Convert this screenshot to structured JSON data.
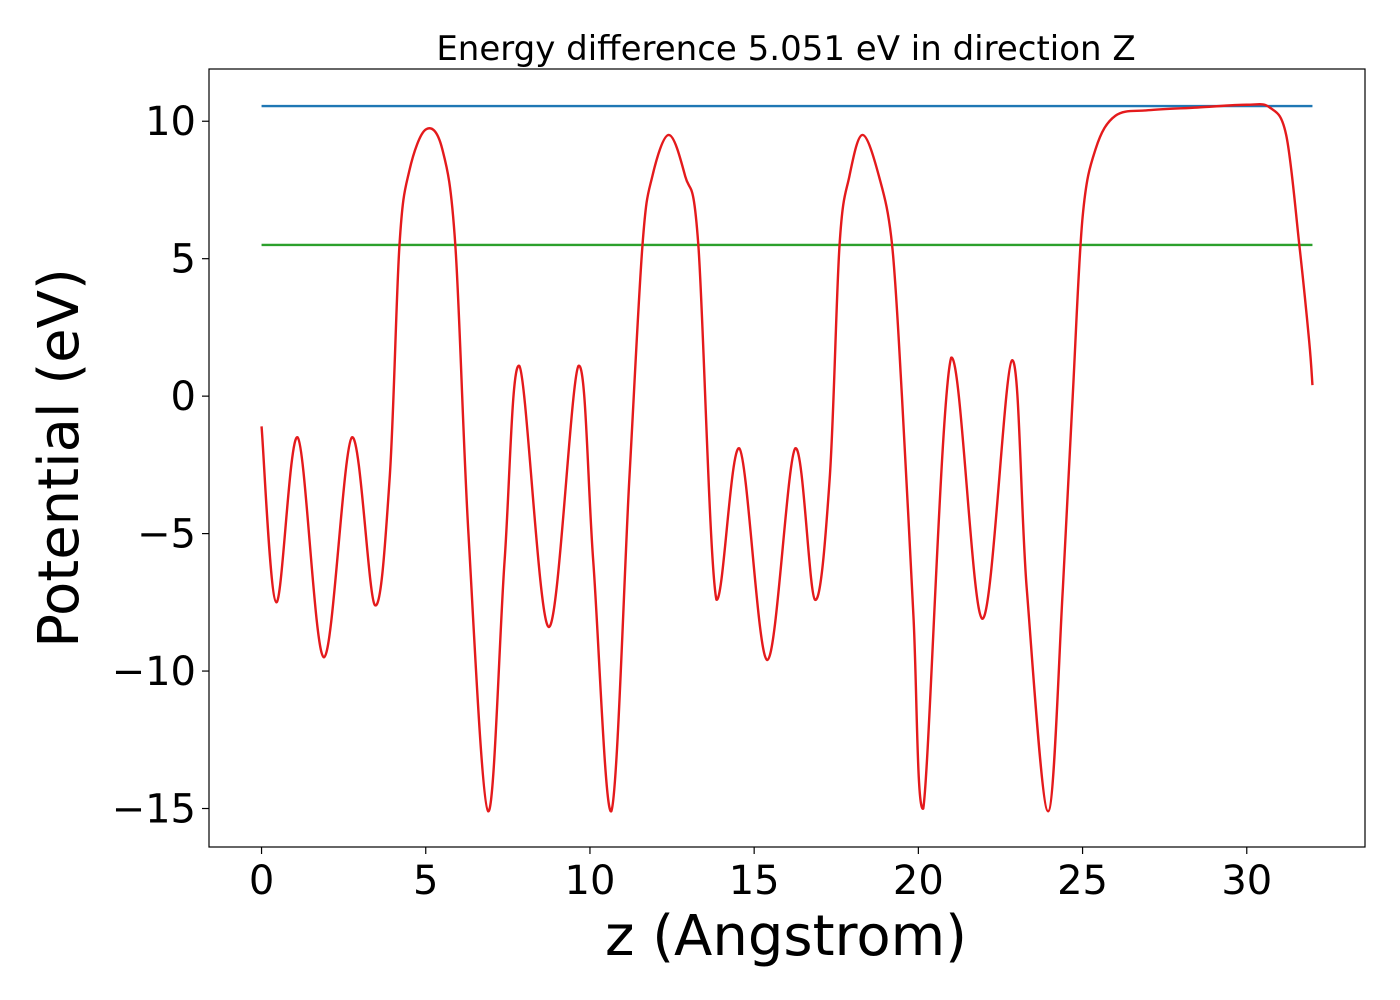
{
  "chart_data": {
    "type": "line",
    "title": "Energy difference 5.051 eV in direction Z",
    "xlabel": "z (Angstrom)",
    "ylabel": "Potential (eV)",
    "xlim": [
      -1.6,
      33.6
    ],
    "ylim": [
      -16.4,
      11.9
    ],
    "xticks": [
      0,
      5,
      10,
      15,
      20,
      25,
      30
    ],
    "xtick_labels": [
      "0",
      "5",
      "10",
      "15",
      "20",
      "25",
      "30"
    ],
    "yticks": [
      10,
      5,
      0,
      -5,
      -10,
      -15
    ],
    "ytick_labels": [
      "10",
      "5",
      "0",
      "−5",
      "−10",
      "−15"
    ],
    "grid": false,
    "series": [
      {
        "color": "#1f77b4",
        "x": [
          0,
          32
        ],
        "y": [
          10.55,
          10.55
        ]
      },
      {
        "color": "#2ca02c",
        "x": [
          0,
          32
        ],
        "y": [
          5.5,
          5.5
        ]
      },
      {
        "color": "#e41a1c",
        "x": [
          0,
          0.45,
          1.1,
          1.9,
          2.75,
          3.45,
          3.9,
          4.2,
          4.5,
          5.0,
          5.5,
          5.9,
          6.3,
          6.9,
          7.4,
          7.85,
          8.75,
          9.65,
          10.1,
          10.65,
          11.2,
          11.6,
          11.9,
          12.4,
          12.9,
          13.3,
          13.85,
          14.55,
          15.4,
          16.25,
          16.85,
          17.3,
          17.6,
          17.9,
          18.3,
          18.8,
          19.2,
          19.5,
          19.85,
          20.15,
          21.0,
          21.95,
          22.85,
          23.3,
          23.95,
          24.4,
          24.7,
          25.0,
          25.4,
          26.0,
          27.0,
          28.5,
          30.0,
          30.7,
          31.2,
          31.6,
          31.9,
          32.0
        ],
        "y": [
          -1.1,
          -7.5,
          -1.5,
          -9.5,
          -1.5,
          -7.6,
          -3.0,
          5.5,
          8.2,
          9.7,
          9.0,
          5.5,
          -5.0,
          -15.1,
          -6.0,
          1.1,
          -8.4,
          1.1,
          -6.0,
          -15.1,
          -3.0,
          5.5,
          8.0,
          9.5,
          8.0,
          5.5,
          -7.4,
          -1.9,
          -9.6,
          -1.9,
          -7.4,
          -3.0,
          5.5,
          8.0,
          9.5,
          8.0,
          5.5,
          0.0,
          -8.0,
          -15.0,
          1.4,
          -8.1,
          1.3,
          -7.0,
          -15.1,
          -7.0,
          0.0,
          6.5,
          9.0,
          10.2,
          10.4,
          10.5,
          10.6,
          10.5,
          9.5,
          5.5,
          2.0,
          0.4
        ]
      }
    ]
  }
}
